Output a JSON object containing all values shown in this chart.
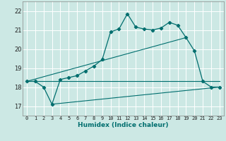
{
  "xlabel": "Humidex (Indice chaleur)",
  "bg_color": "#cce8e4",
  "grid_color": "#ffffff",
  "line_color": "#006e6e",
  "xlim": [
    -0.5,
    23.5
  ],
  "ylim": [
    16.5,
    22.5
  ],
  "xticks": [
    0,
    1,
    2,
    3,
    4,
    5,
    6,
    7,
    8,
    9,
    10,
    11,
    12,
    13,
    14,
    15,
    16,
    17,
    18,
    19,
    20,
    21,
    22,
    23
  ],
  "yticks": [
    17,
    18,
    19,
    20,
    21,
    22
  ],
  "line1_x": [
    0,
    1,
    2,
    3,
    4,
    5,
    6,
    7,
    8,
    9,
    10,
    11,
    12,
    13,
    14,
    15,
    16,
    17,
    18,
    19,
    20,
    21,
    22,
    23
  ],
  "line1_y": [
    18.3,
    18.3,
    18.0,
    17.1,
    18.4,
    18.5,
    18.6,
    18.85,
    19.1,
    19.45,
    20.9,
    21.05,
    21.85,
    21.15,
    21.05,
    21.0,
    21.1,
    21.4,
    21.25,
    20.6,
    19.9,
    18.3,
    18.0,
    18.0
  ],
  "line2_x": [
    0,
    23
  ],
  "line2_y": [
    18.3,
    18.3
  ],
  "line3_x": [
    0,
    19
  ],
  "line3_y": [
    18.3,
    20.6
  ],
  "line4_x": [
    3,
    23
  ],
  "line4_y": [
    17.1,
    18.0
  ]
}
